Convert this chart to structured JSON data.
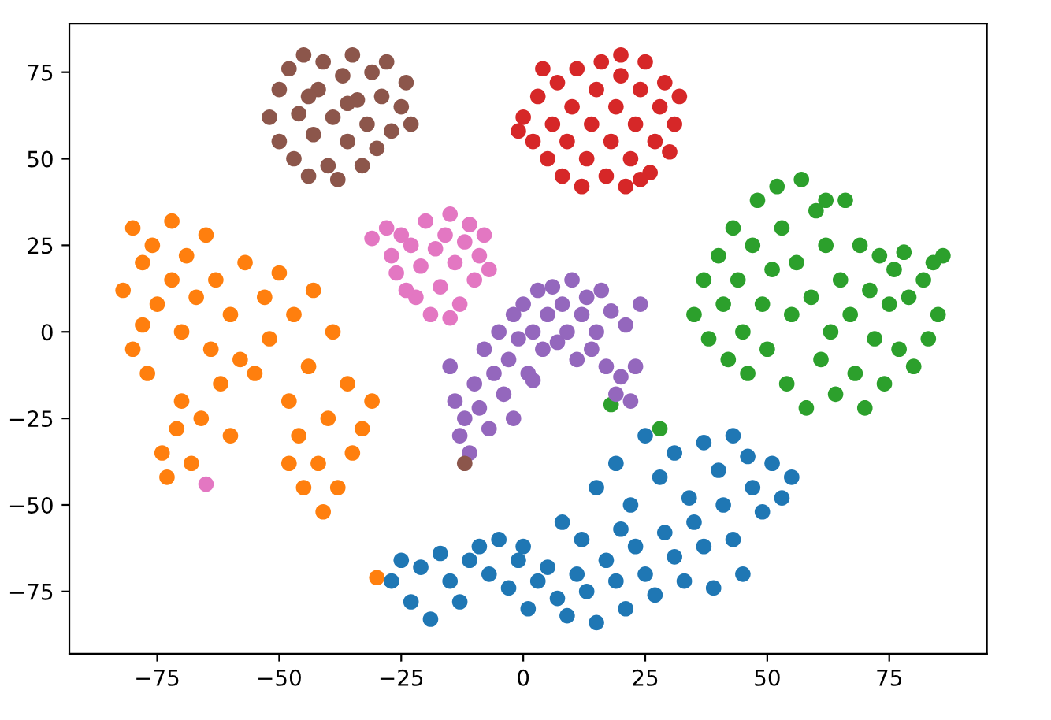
{
  "chart_data": {
    "type": "scatter",
    "marker": "circle",
    "grid": false,
    "xlim": [
      -93,
      95
    ],
    "ylim": [
      -93,
      89
    ],
    "xticks": [
      {
        "value": -75,
        "label": "−75"
      },
      {
        "value": -50,
        "label": "−50"
      },
      {
        "value": -25,
        "label": "−25"
      },
      0,
      25,
      50,
      75
    ],
    "yticks": [
      {
        "value": -75,
        "label": "−75"
      },
      {
        "value": -50,
        "label": "−50"
      },
      {
        "value": -25,
        "label": "−25"
      },
      0,
      25,
      50,
      75
    ],
    "series": [
      {
        "color": "#1f77b4",
        "x": [
          -27,
          -25,
          -23,
          -21,
          -19,
          -17,
          -15,
          -13,
          -11,
          -9,
          -7,
          -5,
          -3,
          -1,
          1,
          3,
          5,
          7,
          9,
          11,
          13,
          15,
          17,
          19,
          21,
          23,
          25,
          27,
          29,
          31,
          33,
          35,
          37,
          39,
          41,
          43,
          45,
          47,
          49,
          51,
          53,
          55,
          19,
          22,
          25,
          28,
          31,
          34,
          37,
          40,
          43,
          46,
          15,
          20,
          12,
          8,
          0
        ],
        "values": [
          -72,
          -66,
          -78,
          -68,
          -83,
          -64,
          -72,
          -78,
          -66,
          -62,
          -70,
          -60,
          -74,
          -66,
          -80,
          -72,
          -68,
          -77,
          -82,
          -70,
          -75,
          -84,
          -66,
          -72,
          -80,
          -62,
          -70,
          -76,
          -58,
          -65,
          -72,
          -55,
          -62,
          -74,
          -50,
          -60,
          -70,
          -45,
          -52,
          -38,
          -48,
          -42,
          -38,
          -50,
          -30,
          -42,
          -35,
          -48,
          -32,
          -40,
          -30,
          -36,
          -45,
          -57,
          -60,
          -55,
          -62
        ]
      },
      {
        "color": "#ff7f0e",
        "x": [
          -82,
          -80,
          -80,
          -78,
          -78,
          -77,
          -76,
          -75,
          -74,
          -73,
          -72,
          -72,
          -71,
          -70,
          -70,
          -69,
          -68,
          -67,
          -66,
          -65,
          -64,
          -63,
          -62,
          -60,
          -58,
          -57,
          -55,
          -53,
          -52,
          -50,
          -48,
          -47,
          -46,
          -45,
          -44,
          -43,
          -42,
          -41,
          -40,
          -39,
          -38,
          -36,
          -35,
          -33,
          -31,
          -60,
          -48,
          -30
        ],
        "values": [
          12,
          -5,
          30,
          20,
          2,
          -12,
          25,
          8,
          -35,
          -42,
          32,
          15,
          -28,
          0,
          -20,
          22,
          -38,
          10,
          -25,
          28,
          -5,
          15,
          -15,
          5,
          -8,
          20,
          -12,
          10,
          -2,
          17,
          -20,
          5,
          -30,
          -45,
          -10,
          12,
          -38,
          -52,
          -25,
          0,
          -45,
          -15,
          -35,
          -28,
          -20,
          -30,
          -38,
          -71
        ]
      },
      {
        "color": "#2ca02c",
        "x": [
          35,
          37,
          38,
          40,
          41,
          42,
          43,
          44,
          45,
          46,
          47,
          48,
          49,
          50,
          51,
          52,
          53,
          54,
          55,
          56,
          57,
          58,
          59,
          60,
          61,
          62,
          63,
          64,
          65,
          66,
          67,
          68,
          69,
          70,
          71,
          72,
          73,
          74,
          75,
          76,
          77,
          78,
          79,
          80,
          82,
          84,
          85,
          86,
          83,
          62,
          18,
          28
        ],
        "values": [
          5,
          15,
          -2,
          22,
          8,
          -8,
          30,
          15,
          0,
          -12,
          25,
          38,
          8,
          -5,
          18,
          42,
          30,
          -15,
          5,
          20,
          44,
          -22,
          10,
          35,
          -8,
          25,
          0,
          -18,
          15,
          38,
          5,
          -12,
          25,
          -22,
          12,
          -2,
          22,
          -15,
          8,
          18,
          -5,
          23,
          10,
          -10,
          15,
          20,
          5,
          22,
          -2,
          38,
          -21,
          -28
        ]
      },
      {
        "color": "#d62728",
        "x": [
          0,
          2,
          3,
          5,
          6,
          7,
          8,
          9,
          10,
          11,
          12,
          13,
          14,
          15,
          16,
          17,
          18,
          19,
          20,
          21,
          22,
          23,
          24,
          25,
          26,
          27,
          28,
          29,
          30,
          31,
          32,
          -1,
          4,
          20,
          24
        ],
        "values": [
          62,
          55,
          68,
          50,
          60,
          72,
          45,
          55,
          65,
          76,
          42,
          50,
          60,
          70,
          78,
          45,
          55,
          65,
          74,
          42,
          50,
          60,
          70,
          78,
          46,
          55,
          65,
          72,
          52,
          60,
          68,
          58,
          76,
          80,
          44
        ]
      },
      {
        "color": "#9467bd",
        "x": [
          -13,
          -14,
          -12,
          -11,
          -10,
          -9,
          -8,
          -7,
          -6,
          -5,
          -4,
          -3,
          -2,
          -1,
          0,
          1,
          2,
          3,
          4,
          5,
          6,
          7,
          8,
          9,
          10,
          11,
          12,
          13,
          14,
          15,
          16,
          17,
          18,
          19,
          20,
          21,
          22,
          23,
          24,
          -15,
          -2,
          2
        ],
        "values": [
          -30,
          -20,
          -25,
          -35,
          -15,
          -22,
          -5,
          -28,
          -12,
          0,
          -18,
          -8,
          5,
          -2,
          8,
          -12,
          0,
          12,
          -5,
          5,
          13,
          -3,
          8,
          0,
          15,
          -8,
          5,
          10,
          -5,
          0,
          12,
          -10,
          6,
          -18,
          -13,
          2,
          -20,
          -10,
          8,
          -10,
          -25,
          -14
        ]
      },
      {
        "color": "#8c564b",
        "x": [
          -52,
          -50,
          -50,
          -48,
          -47,
          -46,
          -45,
          -44,
          -43,
          -42,
          -41,
          -40,
          -39,
          -38,
          -37,
          -36,
          -35,
          -34,
          -33,
          -32,
          -31,
          -30,
          -29,
          -28,
          -27,
          -25,
          -24,
          -23,
          -36,
          -44,
          -12
        ],
        "values": [
          62,
          55,
          70,
          76,
          50,
          63,
          80,
          45,
          57,
          70,
          78,
          48,
          62,
          44,
          74,
          55,
          80,
          67,
          48,
          60,
          75,
          53,
          68,
          78,
          58,
          65,
          72,
          60,
          66,
          68,
          -38
        ]
      },
      {
        "color": "#e377c2",
        "x": [
          -31,
          -28,
          -27,
          -26,
          -25,
          -23,
          -22,
          -21,
          -20,
          -19,
          -18,
          -17,
          -16,
          -15,
          -14,
          -13,
          -12,
          -11,
          -10,
          -9,
          -8,
          -7,
          -24,
          -15,
          -65
        ],
        "values": [
          27,
          30,
          22,
          17,
          28,
          25,
          10,
          19,
          32,
          5,
          24,
          13,
          28,
          34,
          20,
          8,
          26,
          31,
          15,
          22,
          28,
          18,
          12,
          4,
          -44
        ]
      }
    ]
  }
}
